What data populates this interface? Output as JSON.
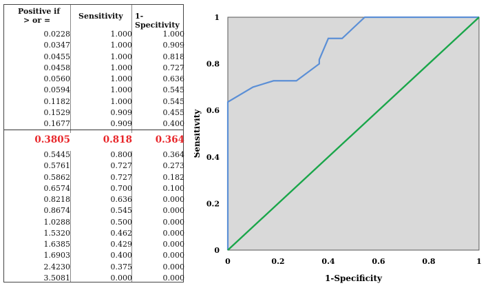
{
  "table": {
    "headers": [
      "Positive if\n> or =",
      "Sensitivity",
      "1-Specitivity"
    ],
    "header_line1": "Positive if",
    "header_line2": "> or =",
    "rows_top": [
      [
        "0.0228",
        "1.000",
        "1.000"
      ],
      [
        "0.0347",
        "1.000",
        "0.909"
      ],
      [
        "0.0455",
        "1.000",
        "0.818"
      ],
      [
        "0.0458",
        "1.000",
        "0.727"
      ],
      [
        "0.0560",
        "1.000",
        "0.636"
      ],
      [
        "0.0594",
        "1.000",
        "0.545"
      ],
      [
        "0.1182",
        "1.000",
        "0.545"
      ],
      [
        "0.1529",
        "0.909",
        "0.455"
      ],
      [
        "0.1677",
        "0.909",
        "0.400"
      ]
    ],
    "highlight_row": [
      "0.3805",
      "0.818",
      "0.364"
    ],
    "rows_bottom": [
      [
        "0.5445",
        "0.800",
        "0.364"
      ],
      [
        "0.5761",
        "0.727",
        "0.273"
      ],
      [
        "0.5862",
        "0.727",
        "0.182"
      ],
      [
        "0.6574",
        "0.700",
        "0.100"
      ],
      [
        "0.8218",
        "0.636",
        "0.000"
      ],
      [
        "0.8674",
        "0.545",
        "0.000"
      ],
      [
        "1.0288",
        "0.500",
        "0.000"
      ],
      [
        "1.5320",
        "0.462",
        "0.000"
      ],
      [
        "1.6385",
        "0.429",
        "0.000"
      ],
      [
        "1.6903",
        "0.400",
        "0.000"
      ],
      [
        "2.4230",
        "0.375",
        "0.000"
      ],
      [
        "3.5081",
        "0.000",
        "0.000"
      ]
    ],
    "highlight_color": "#e8262a"
  },
  "chart_data": {
    "type": "line",
    "xlabel": "1-Specificity",
    "ylabel": "Sensitivity",
    "xlim": [
      0,
      1
    ],
    "ylim": [
      0,
      1
    ],
    "xticks": [
      "0",
      "0.2",
      "0.4",
      "0.6",
      "0.8",
      "1"
    ],
    "yticks": [
      "0",
      "0.2",
      "0.4",
      "0.6",
      "0.8",
      "1"
    ],
    "grid": false,
    "background": "#d9d9d9",
    "series": [
      {
        "color": "#5b8fd6",
        "x": [
          0,
          0,
          0.1,
          0.182,
          0.273,
          0.364,
          0.364,
          0.4,
          0.455,
          0.545,
          0.545,
          1.0
        ],
        "y": [
          0,
          0.636,
          0.7,
          0.727,
          0.727,
          0.8,
          0.818,
          0.909,
          0.909,
          1.0,
          1.0,
          1.0
        ]
      },
      {
        "color": "#1aa64a",
        "x": [
          0,
          1
        ],
        "y": [
          0,
          1
        ]
      }
    ]
  }
}
